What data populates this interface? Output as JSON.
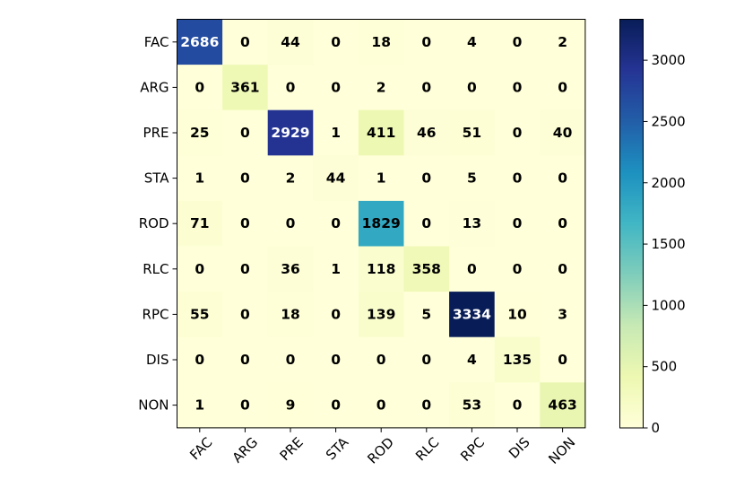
{
  "chart_data": {
    "type": "heatmap",
    "title": "",
    "xlabel": "",
    "ylabel": "",
    "x_labels": [
      "FAC",
      "ARG",
      "PRE",
      "STA",
      "ROD",
      "RLC",
      "RPC",
      "DIS",
      "NON"
    ],
    "y_labels": [
      "FAC",
      "ARG",
      "PRE",
      "STA",
      "ROD",
      "RLC",
      "RPC",
      "DIS",
      "NON"
    ],
    "values": [
      [
        2686,
        0,
        44,
        0,
        18,
        0,
        4,
        0,
        2
      ],
      [
        0,
        361,
        0,
        0,
        2,
        0,
        0,
        0,
        0
      ],
      [
        25,
        0,
        2929,
        1,
        411,
        46,
        51,
        0,
        40
      ],
      [
        1,
        0,
        2,
        44,
        1,
        0,
        5,
        0,
        0
      ],
      [
        71,
        0,
        0,
        0,
        1829,
        0,
        13,
        0,
        0
      ],
      [
        0,
        0,
        36,
        1,
        118,
        358,
        0,
        0,
        0
      ],
      [
        55,
        0,
        18,
        0,
        139,
        5,
        3334,
        10,
        3
      ],
      [
        0,
        0,
        0,
        0,
        0,
        0,
        4,
        135,
        0
      ],
      [
        1,
        0,
        9,
        0,
        0,
        0,
        53,
        0,
        463
      ]
    ],
    "colormap": "YlGnBu",
    "colormap_stops": [
      "#ffffd9",
      "#edf8b1",
      "#c7e9b4",
      "#7fcdbb",
      "#41b6c4",
      "#1d91c0",
      "#225ea8",
      "#253494",
      "#081d58"
    ],
    "color_range": [
      0,
      3334
    ],
    "colorbar_ticks": [
      0,
      500,
      1000,
      1500,
      2000,
      2500,
      3000
    ],
    "x_tick_rotation": "45",
    "grid": false,
    "legend": "colorbar-right"
  }
}
